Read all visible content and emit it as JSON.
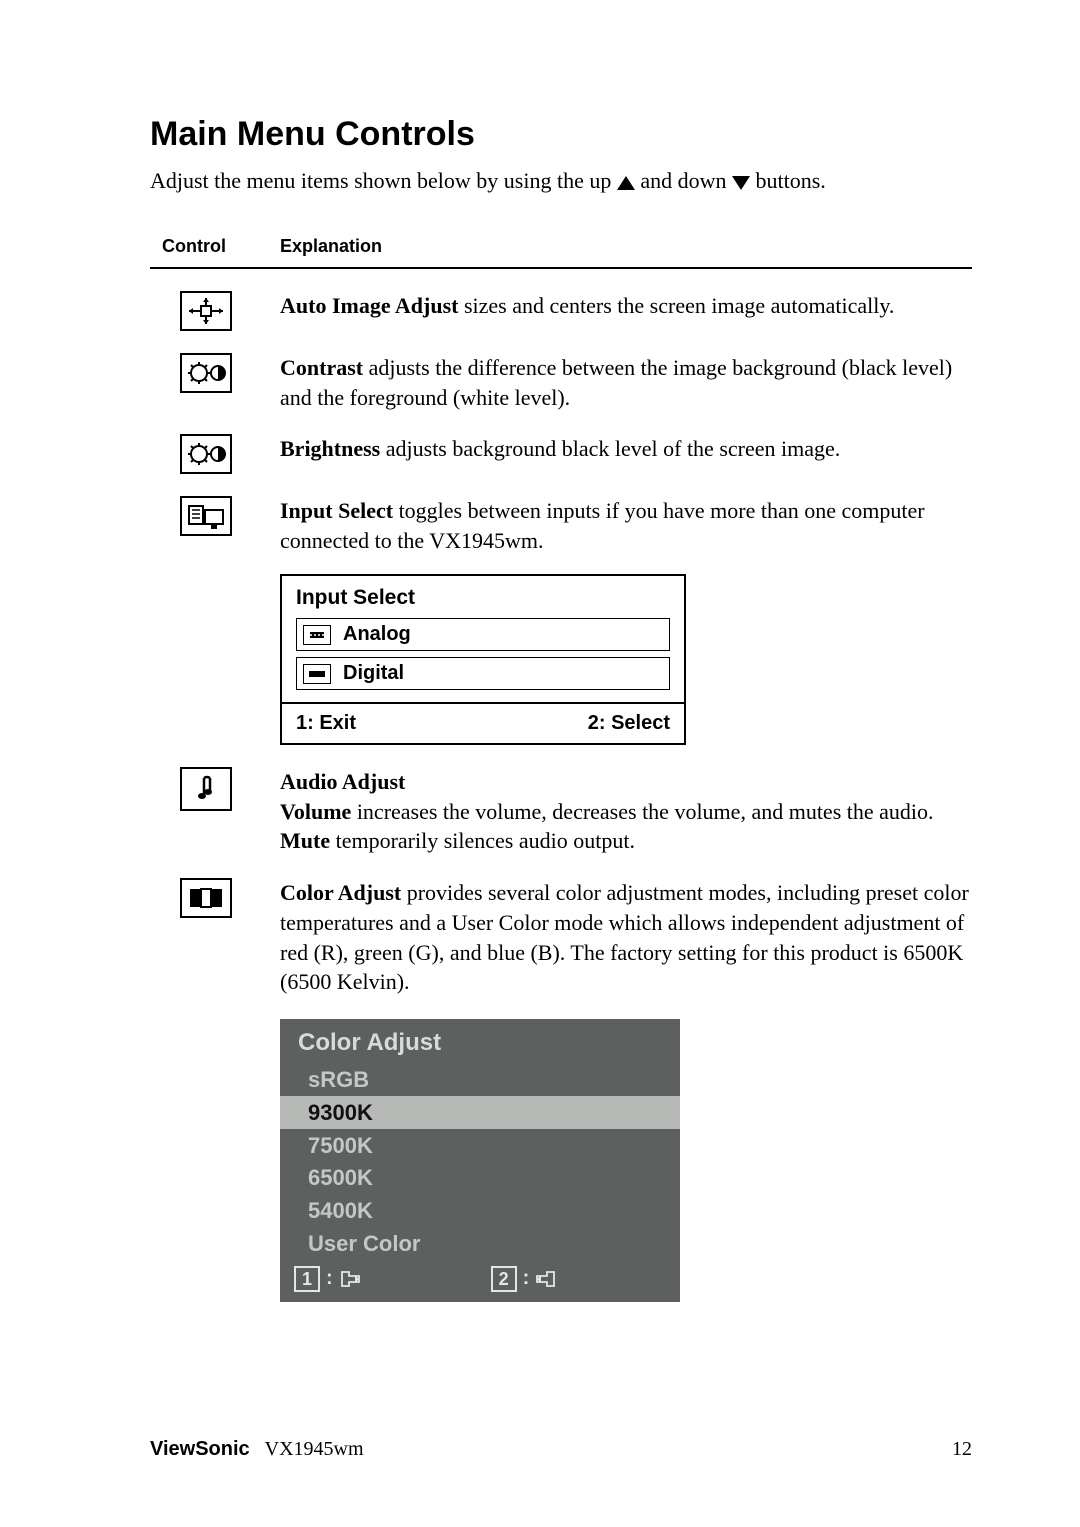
{
  "title": "Main Menu Controls",
  "intro_prefix": "Adjust the menu items shown below by using the up ",
  "intro_mid": " and down ",
  "intro_suffix": " buttons.",
  "table": {
    "control": "Control",
    "explanation": "Explanation"
  },
  "rows": {
    "auto": {
      "term": "Auto Image Adjust",
      "text": " sizes and centers the screen image automatically."
    },
    "contrast": {
      "term": "Contrast",
      "text": " adjusts the difference between the image background  (black level) and the foreground (white level)."
    },
    "brightness": {
      "term": "Brightness",
      "text": " adjusts background black level of the screen image."
    },
    "input": {
      "term": "Input Select",
      "text": " toggles between inputs if you have more than one computer connected to the VX1945wm."
    },
    "audio": {
      "term1": "Audio Adjust",
      "vol_term": "Volume",
      "vol_text": " increases the volume, decreases the volume, and mutes the audio.",
      "mute_term": "Mute",
      "mute_text": " temporarily silences audio output."
    },
    "color": {
      "term": "Color Adjust",
      "text": " provides several color adjustment modes, including preset color temperatures and a User Color mode which allows independent adjustment of red (R), green (G), and blue (B). The factory setting for this product is 6500K (6500 Kelvin)."
    }
  },
  "input_select_panel": {
    "title": "Input Select",
    "items": [
      {
        "label": "Analog"
      },
      {
        "label": "Digital"
      }
    ],
    "foot_left": "1: Exit",
    "foot_right": "2: Select"
  },
  "color_adjust_panel": {
    "title": "Color Adjust",
    "items": [
      "sRGB",
      "9300K",
      "7500K",
      "6500K",
      "5400K",
      "User Color"
    ],
    "highlight_index": 1,
    "bg": "#5d605e",
    "highlight_bg": "#b7b9b7",
    "text": "#c4c7c5",
    "key1": "1",
    "key2": "2"
  },
  "footer": {
    "brand": "ViewSonic",
    "model": "VX1945wm",
    "page": "12"
  }
}
